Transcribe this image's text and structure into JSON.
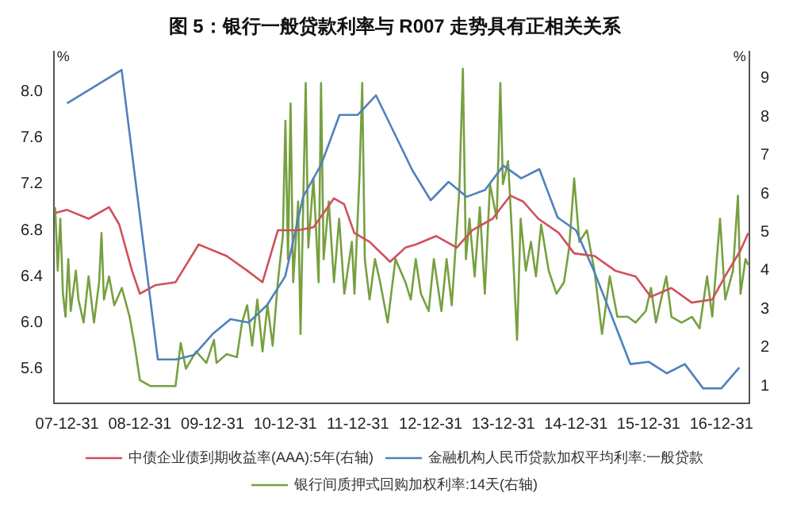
{
  "chart_data": {
    "type": "line",
    "title": "图 5：银行一般贷款利率与 R007 走势具有正相关关系",
    "ylabel": "%",
    "y2label": "%",
    "legend": "bottom",
    "marker": "none",
    "line_style": "solid",
    "xlim": [
      "2007-10-25",
      "2017-05-20"
    ],
    "xticks": [
      {
        "value": "2007-12-31",
        "label": "07-12-31"
      },
      {
        "value": "2008-12-31",
        "label": "08-12-31"
      },
      {
        "value": "2009-12-31",
        "label": "09-12-31"
      },
      {
        "value": "2010-12-31",
        "label": "10-12-31"
      },
      {
        "value": "2011-12-31",
        "label": "11-12-31"
      },
      {
        "value": "2012-12-31",
        "label": "12-12-31"
      },
      {
        "value": "2013-12-31",
        "label": "13-12-31"
      },
      {
        "value": "2014-12-31",
        "label": "14-12-31"
      },
      {
        "value": "2015-12-31",
        "label": "15-12-31"
      },
      {
        "value": "2016-12-31",
        "label": "16-12-31"
      }
    ],
    "ylim": [
      5.3,
      8.35
    ],
    "yticks": [
      {
        "value": 5.6,
        "label": "5.6"
      },
      {
        "value": 6,
        "label": "6.0"
      },
      {
        "value": 6.4,
        "label": "6.4"
      },
      {
        "value": 6.8,
        "label": "6.8"
      },
      {
        "value": 7.2,
        "label": "7.2"
      },
      {
        "value": 7.6,
        "label": "7.6"
      },
      {
        "value": 8,
        "label": "8.0"
      }
    ],
    "y2lim": [
      0.55,
      9.7
    ],
    "y2ticks": [
      1,
      2,
      3,
      4,
      5,
      6,
      7,
      8,
      9
    ],
    "series": [
      {
        "name": "中债企业债到期收益率(AAA):5年(右轴)",
        "color": "#d0505a",
        "axis": "y2",
        "x": [
          "2007-11-01",
          "2007-12-31",
          "2008-04-17",
          "2008-07-29",
          "2008-09-18",
          "2008-11-21",
          "2008-12-31",
          "2009-03-17",
          "2009-06-28",
          "2009-10-22",
          "2010-03-12",
          "2010-06-23",
          "2010-09-08",
          "2010-11-24",
          "2011-03-06",
          "2011-05-22",
          "2011-09-02",
          "2011-10-23",
          "2011-12-13",
          "2012-02-28",
          "2012-06-10",
          "2012-08-26",
          "2012-10-17",
          "2013-01-28",
          "2013-05-11",
          "2013-07-27",
          "2013-11-07",
          "2014-02-04",
          "2014-04-09",
          "2014-06-25",
          "2014-10-06",
          "2014-12-22",
          "2015-04-04",
          "2015-07-16",
          "2015-10-27",
          "2016-01-11",
          "2016-04-23",
          "2016-08-04",
          "2016-11-15",
          "2017-01-18",
          "2017-04-06",
          "2017-05-15"
        ],
        "values": [
          5.5,
          5.58,
          5.35,
          5.65,
          5.2,
          4.0,
          3.4,
          3.62,
          3.7,
          4.68,
          4.38,
          4.0,
          3.7,
          5.05,
          5.05,
          5.13,
          5.88,
          5.73,
          4.98,
          4.75,
          4.23,
          4.6,
          4.68,
          4.9,
          4.6,
          5.05,
          5.35,
          5.95,
          5.8,
          5.35,
          4.98,
          4.45,
          4.38,
          4.0,
          3.85,
          3.32,
          3.55,
          3.17,
          3.25,
          3.85,
          4.53,
          4.98
        ]
      },
      {
        "name": "金融机构人民币贷款加权平均利率:一般贷款",
        "color": "#4f81bd",
        "axis": "y",
        "x": [
          "2007-12-31",
          "2008-09-30",
          "2009-03-31",
          "2009-06-30",
          "2009-09-30",
          "2009-12-31",
          "2010-03-31",
          "2010-06-30",
          "2010-09-30",
          "2010-12-31",
          "2011-03-31",
          "2011-06-30",
          "2011-09-30",
          "2011-12-31",
          "2012-03-31",
          "2012-09-30",
          "2012-12-31",
          "2013-03-31",
          "2013-06-30",
          "2013-09-30",
          "2013-12-31",
          "2014-03-31",
          "2014-06-30",
          "2014-09-30",
          "2014-12-31",
          "2015-03-31",
          "2015-06-30",
          "2015-09-30",
          "2015-12-31",
          "2016-03-31",
          "2016-06-30",
          "2016-09-30",
          "2016-12-31",
          "2017-03-31"
        ],
        "values": [
          7.9,
          8.19,
          5.68,
          5.68,
          5.72,
          5.9,
          6.03,
          6.0,
          6.15,
          6.4,
          7.09,
          7.37,
          7.8,
          7.8,
          7.97,
          7.32,
          7.06,
          7.22,
          7.09,
          7.15,
          7.36,
          7.25,
          7.33,
          6.91,
          6.8,
          6.45,
          6.05,
          5.64,
          5.66,
          5.56,
          5.64,
          5.43,
          5.43,
          5.61
        ]
      },
      {
        "name": "银行间质押式回购加权利率:14天(右轴)",
        "color": "#77a040",
        "axis": "y2",
        "x": [
          "2007-11-01",
          "2007-11-14",
          "2007-11-27",
          "2007-12-10",
          "2007-12-23",
          "2008-01-06",
          "2008-01-18",
          "2008-02-13",
          "2008-02-26",
          "2008-03-23",
          "2008-04-17",
          "2008-05-14",
          "2008-06-09",
          "2008-06-21",
          "2008-07-03",
          "2008-07-29",
          "2008-08-24",
          "2008-10-01",
          "2008-11-09",
          "2008-12-05",
          "2008-12-31",
          "2009-02-21",
          "2009-05-08",
          "2009-06-28",
          "2009-07-24",
          "2009-08-19",
          "2009-10-09",
          "2009-11-30",
          "2010-01-07",
          "2010-01-20",
          "2010-03-12",
          "2010-05-02",
          "2010-05-28",
          "2010-06-23",
          "2010-07-18",
          "2010-08-13",
          "2010-09-08",
          "2010-10-03",
          "2010-10-29",
          "2010-11-24",
          "2010-12-19",
          "2011-01-01",
          "2011-01-14",
          "2011-01-27",
          "2011-02-09",
          "2011-03-06",
          "2011-03-18",
          "2011-04-13",
          "2011-04-26",
          "2011-05-22",
          "2011-06-17",
          "2011-06-29",
          "2011-07-12",
          "2011-08-07",
          "2011-09-02",
          "2011-09-28",
          "2011-10-24",
          "2011-12-01",
          "2011-12-14",
          "2012-01-09",
          "2012-01-22",
          "2012-02-04",
          "2012-02-28",
          "2012-03-26",
          "2012-04-21",
          "2012-05-29",
          "2012-07-07",
          "2012-08-26",
          "2012-09-22",
          "2012-10-17",
          "2012-11-12",
          "2012-12-21",
          "2013-01-16",
          "2013-02-23",
          "2013-03-21",
          "2013-04-16",
          "2013-05-24",
          "2013-06-11",
          "2013-06-26",
          "2013-07-14",
          "2013-08-09",
          "2013-09-04",
          "2013-09-29",
          "2013-10-25",
          "2013-11-28",
          "2013-12-16",
          "2013-12-29",
          "2014-01-24",
          "2014-02-19",
          "2014-03-10",
          "2014-03-28",
          "2014-04-23",
          "2014-05-19",
          "2014-06-13",
          "2014-07-09",
          "2014-08-16",
          "2014-09-24",
          "2014-11-01",
          "2014-11-27",
          "2014-12-22",
          "2015-01-17",
          "2015-02-24",
          "2015-04-03",
          "2015-05-11",
          "2015-06-19",
          "2015-07-27",
          "2015-09-18",
          "2015-10-26",
          "2015-12-17",
          "2016-01-12",
          "2016-02-06",
          "2016-03-29",
          "2016-04-24",
          "2016-06-14",
          "2016-08-05",
          "2016-09-12",
          "2016-10-20",
          "2016-11-15",
          "2016-12-24",
          "2017-01-19",
          "2017-02-27",
          "2017-03-24",
          "2017-04-06",
          "2017-05-01",
          "2017-05-15"
        ],
        "values": [
          5.65,
          4.0,
          5.35,
          3.4,
          2.8,
          4.3,
          2.95,
          4.0,
          3.25,
          2.65,
          3.85,
          2.65,
          3.7,
          4.98,
          3.25,
          3.85,
          3.1,
          3.55,
          2.8,
          2.05,
          1.15,
          1.0,
          1.0,
          1.0,
          2.12,
          1.45,
          1.9,
          1.6,
          2.2,
          1.6,
          1.83,
          1.75,
          2.65,
          3.1,
          2.05,
          3.25,
          1.9,
          3.1,
          2.05,
          3.7,
          4.9,
          7.9,
          4.3,
          8.35,
          3.7,
          5.8,
          2.35,
          8.88,
          4.6,
          6.4,
          3.7,
          8.88,
          4.3,
          5.8,
          3.7,
          5.35,
          3.4,
          4.75,
          3.4,
          6.55,
          8.88,
          4.3,
          3.25,
          4.3,
          3.7,
          2.65,
          4.3,
          3.7,
          3.25,
          4.3,
          3.4,
          2.95,
          4.3,
          2.95,
          4.3,
          3.1,
          6.1,
          9.25,
          4.3,
          5.35,
          3.85,
          5.65,
          3.4,
          6.25,
          5.35,
          8.88,
          6.25,
          6.85,
          4.3,
          2.2,
          5.35,
          4.0,
          4.75,
          3.85,
          5.2,
          4.0,
          3.4,
          3.7,
          4.6,
          6.4,
          4.75,
          5.05,
          4.0,
          2.35,
          3.85,
          2.8,
          2.8,
          2.65,
          2.95,
          3.55,
          2.65,
          3.85,
          2.8,
          2.65,
          2.8,
          2.5,
          3.85,
          2.8,
          5.35,
          3.25,
          4.0,
          5.95,
          3.4,
          4.3,
          4.15
        ]
      }
    ]
  }
}
